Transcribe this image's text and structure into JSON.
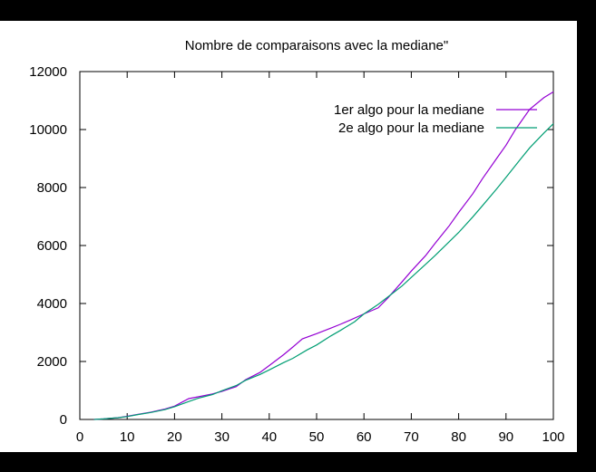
{
  "chart_data": {
    "type": "line",
    "title": "Nombre de comparaisons avec la mediane\"",
    "xlabel": "",
    "ylabel": "",
    "xlim": [
      0,
      100
    ],
    "ylim": [
      0,
      12000
    ],
    "xticks": [
      0,
      10,
      20,
      30,
      40,
      50,
      60,
      70,
      80,
      90,
      100
    ],
    "yticks": [
      0,
      2000,
      4000,
      6000,
      8000,
      10000,
      12000
    ],
    "xtick_labels": [
      "0",
      "10",
      "20",
      "30",
      "40",
      "50",
      "60",
      "70",
      "80",
      "90",
      "100"
    ],
    "ytick_labels": [
      "0",
      "2000",
      "4000",
      "6000",
      "8000",
      "10000",
      "12000"
    ],
    "grid": false,
    "legend_position": "top-right",
    "series": [
      {
        "name": "1er algo pour la mediane",
        "color": "#9400d3",
        "x": [
          3,
          5,
          8,
          10,
          12,
          15,
          18,
          20,
          23,
          25,
          28,
          30,
          33,
          35,
          38,
          40,
          43,
          45,
          47,
          50,
          53,
          55,
          57,
          60,
          63,
          65,
          68,
          70,
          73,
          75,
          78,
          80,
          83,
          85,
          88,
          90,
          92,
          95,
          98,
          100
        ],
        "y": [
          0,
          20,
          60,
          110,
          170,
          250,
          360,
          460,
          720,
          780,
          880,
          970,
          1130,
          1370,
          1620,
          1860,
          2230,
          2500,
          2780,
          2960,
          3150,
          3280,
          3420,
          3640,
          3850,
          4180,
          4740,
          5120,
          5650,
          6070,
          6680,
          7140,
          7790,
          8300,
          9000,
          9460,
          10000,
          10700,
          11100,
          11300
        ]
      },
      {
        "name": "2e algo pour la mediane",
        "color": "#009e73",
        "x": [
          3,
          5,
          8,
          10,
          12,
          15,
          18,
          20,
          23,
          25,
          28,
          30,
          33,
          35,
          38,
          40,
          43,
          45,
          48,
          50,
          53,
          55,
          58,
          60,
          63,
          65,
          68,
          70,
          73,
          75,
          78,
          80,
          83,
          85,
          88,
          90,
          93,
          95,
          98,
          100
        ],
        "y": [
          0,
          20,
          60,
          100,
          160,
          240,
          340,
          440,
          620,
          730,
          860,
          990,
          1170,
          1350,
          1550,
          1710,
          1960,
          2110,
          2400,
          2570,
          2880,
          3070,
          3370,
          3640,
          3970,
          4220,
          4600,
          4900,
          5350,
          5650,
          6130,
          6450,
          6990,
          7370,
          7950,
          8350,
          8970,
          9370,
          9880,
          10200
        ]
      }
    ]
  }
}
